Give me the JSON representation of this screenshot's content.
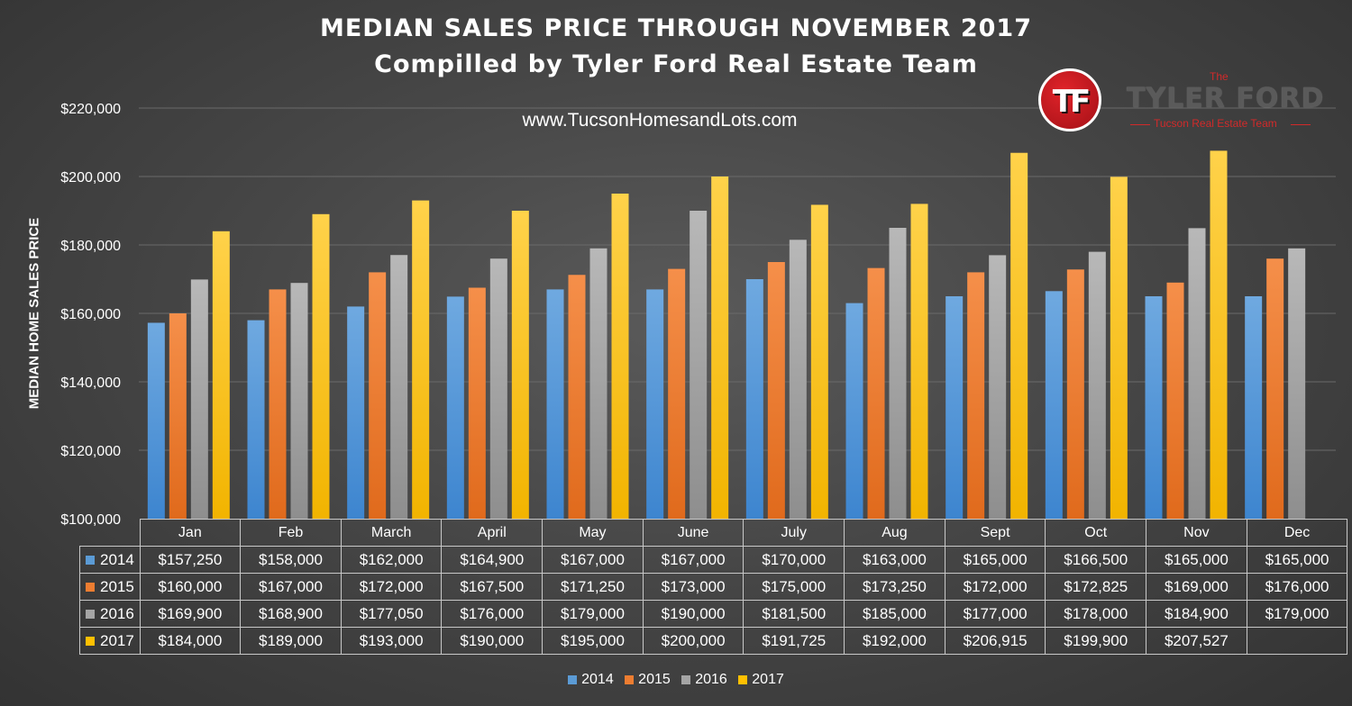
{
  "header": {
    "title": "MEDIAN SALES PRICE THROUGH NOVEMBER 2017",
    "subtitle": "Compilled by Tyler Ford Real Estate Team",
    "website": "www.TucsonHomesandLots.com"
  },
  "logo": {
    "letters": "TF",
    "the": "The",
    "name": "TYLER FORD",
    "subtitle": "Tucson Real Estate Team"
  },
  "chart_data": {
    "type": "bar",
    "title": "MEDIAN SALES PRICE THROUGH NOVEMBER 2017",
    "subtitle": "Compilled by Tyler Ford Real Estate Team",
    "ylabel": "MEDIAN HOME SALES PRICE",
    "xlabel": "",
    "ylim": [
      100000,
      220000
    ],
    "ytick_values": [
      100000,
      120000,
      140000,
      160000,
      180000,
      200000,
      220000
    ],
    "ytick_labels": [
      "$100,000",
      "$120,000",
      "$140,000",
      "$160,000",
      "$180,000",
      "$200,000",
      "$220,000"
    ],
    "grid": true,
    "legend_position": "bottom",
    "categories": [
      "Jan",
      "Feb",
      "March",
      "April",
      "May",
      "June",
      "July",
      "Aug",
      "Sept",
      "Oct",
      "Nov",
      "Dec"
    ],
    "series": [
      {
        "name": "2014",
        "color": "#5b9bd5",
        "values": [
          157250,
          158000,
          162000,
          164900,
          167000,
          167000,
          170000,
          163000,
          165000,
          166500,
          165000,
          165000
        ],
        "labels": [
          "$157,250",
          "$158,000",
          "$162,000",
          "$164,900",
          "$167,000",
          "$167,000",
          "$170,000",
          "$163,000",
          "$165,000",
          "$166,500",
          "$165,000",
          "$165,000"
        ]
      },
      {
        "name": "2015",
        "color": "#ed7d31",
        "values": [
          160000,
          167000,
          172000,
          167500,
          171250,
          173000,
          175000,
          173250,
          172000,
          172825,
          169000,
          176000
        ],
        "labels": [
          "$160,000",
          "$167,000",
          "$172,000",
          "$167,500",
          "$171,250",
          "$173,000",
          "$175,000",
          "$173,250",
          "$172,000",
          "$172,825",
          "$169,000",
          "$176,000"
        ]
      },
      {
        "name": "2016",
        "color": "#a5a5a5",
        "values": [
          169900,
          168900,
          177050,
          176000,
          179000,
          190000,
          181500,
          185000,
          177000,
          178000,
          184900,
          179000
        ],
        "labels": [
          "$169,900",
          "$168,900",
          "$177,050",
          "$176,000",
          "$179,000",
          "$190,000",
          "$181,500",
          "$185,000",
          "$177,000",
          "$178,000",
          "$184,900",
          "$179,000"
        ]
      },
      {
        "name": "2017",
        "color": "#ffc000",
        "values": [
          184000,
          189000,
          193000,
          190000,
          195000,
          200000,
          191725,
          192000,
          206915,
          199900,
          207527,
          null
        ],
        "labels": [
          "$184,000",
          "$189,000",
          "$193,000",
          "$190,000",
          "$195,000",
          "$200,000",
          "$191,725",
          "$192,000",
          "$206,915",
          "$199,900",
          "$207,527",
          ""
        ]
      }
    ]
  }
}
